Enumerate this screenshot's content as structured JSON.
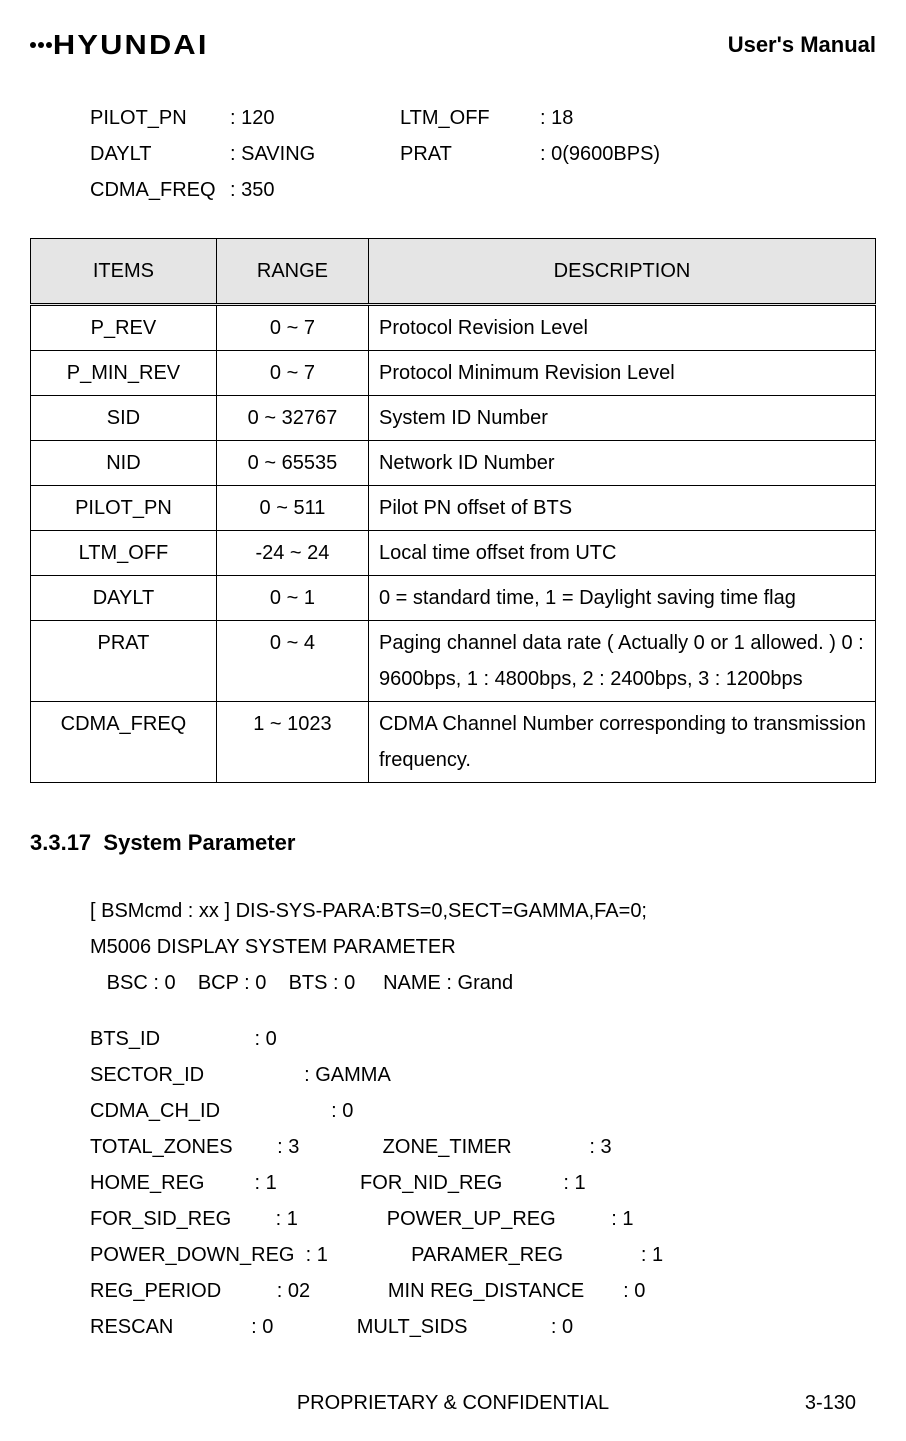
{
  "header": {
    "brand": "HYUNDAI",
    "manual_title": "User's Manual"
  },
  "top_params": [
    [
      {
        "label": "PILOT_PN",
        "value": ": 120"
      },
      {
        "label": "LTM_OFF",
        "value": ": 18"
      }
    ],
    [
      {
        "label": "DAYLT",
        "value": ": SAVING"
      },
      {
        "label": "PRAT",
        "value": ": 0(9600BPS)"
      }
    ],
    [
      {
        "label": "CDMA_FREQ",
        "value": ": 350"
      }
    ]
  ],
  "table": {
    "columns": [
      "ITEMS",
      "RANGE",
      "DESCRIPTION"
    ],
    "col_widths": [
      "22%",
      "18%",
      "60%"
    ],
    "header_bg": "#e5e5e5",
    "border_color": "#000000",
    "rows": [
      [
        "P_REV",
        "0 ~ 7",
        "Protocol Revision Level"
      ],
      [
        "P_MIN_REV",
        "0 ~ 7",
        "Protocol Minimum Revision Level"
      ],
      [
        "SID",
        "0 ~ 32767",
        "System ID Number"
      ],
      [
        "NID",
        "0 ~ 65535",
        "Network ID Number"
      ],
      [
        "PILOT_PN",
        "0 ~ 511",
        "Pilot PN offset of BTS"
      ],
      [
        "LTM_OFF",
        "-24 ~ 24",
        "Local time offset from UTC"
      ],
      [
        "DAYLT",
        "0 ~ 1",
        "0 = standard time, 1 = Daylight saving time flag"
      ],
      [
        "PRAT",
        "0 ~ 4",
        "Paging channel data rate ( Actually 0 or 1 allowed. ) 0 : 9600bps, 1 : 4800bps, 2 : 2400bps, 3 : 1200bps"
      ],
      [
        "CDMA_FREQ",
        "1 ~ 1023",
        "CDMA Channel Number corresponding to transmission frequency."
      ]
    ]
  },
  "section": {
    "number": "3.3.17",
    "title": "System Parameter"
  },
  "cmd": {
    "line1": "[ BSMcmd : xx ] DIS-SYS-PARA:BTS=0,SECT=GAMMA,FA=0;",
    "line2": "M5006 DISPLAY SYSTEM PARAMETER",
    "line3": "   BSC : 0    BCP : 0    BTS : 0     NAME : Grand"
  },
  "sys_params": [
    "BTS_ID                 : 0",
    "SECTOR_ID                  : GAMMA",
    "CDMA_CH_ID                    : 0",
    "TOTAL_ZONES        : 3               ZONE_TIMER              : 3",
    "HOME_REG         : 1               FOR_NID_REG           : 1",
    "FOR_SID_REG        : 1                POWER_UP_REG          : 1",
    "POWER_DOWN_REG  : 1               PARAMER_REG              : 1",
    "REG_PERIOD          : 02              MIN REG_DISTANCE       : 0",
    "RESCAN              : 0               MULT_SIDS               : 0"
  ],
  "footer": {
    "center": "PROPRIETARY & CONFIDENTIAL",
    "right": "3-130"
  }
}
